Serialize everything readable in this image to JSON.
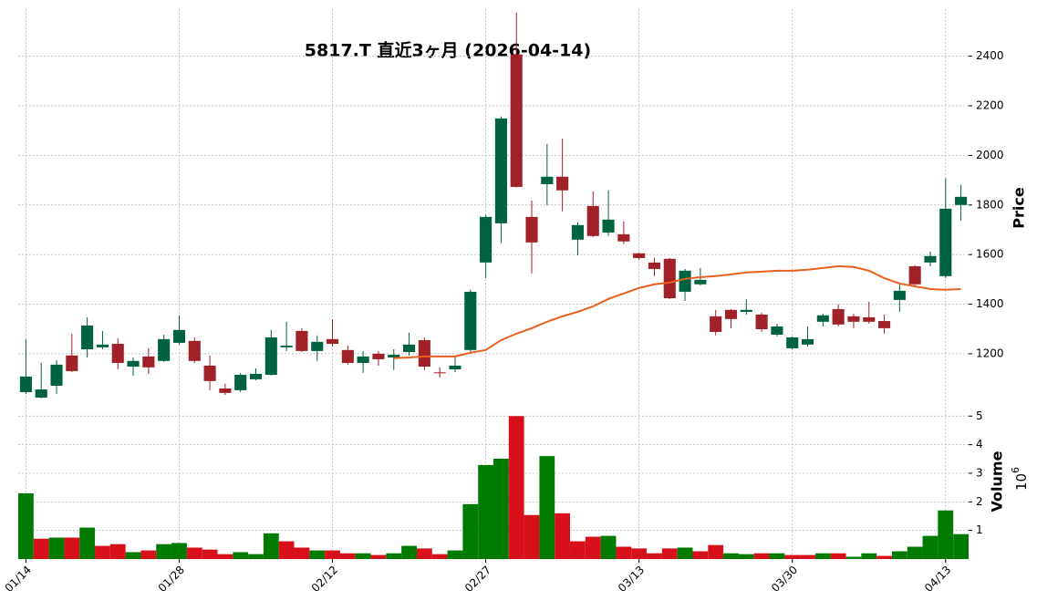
{
  "chart_data": {
    "type": "candlestick",
    "title": "5817.T  直近3ヶ月  (2026-04-14)",
    "ylabel": "Price",
    "categories": [
      "01/14",
      null,
      null,
      null,
      null,
      null,
      null,
      null,
      null,
      null,
      "01/28",
      null,
      null,
      null,
      null,
      null,
      null,
      null,
      null,
      null,
      "02/12",
      null,
      null,
      null,
      null,
      null,
      null,
      null,
      null,
      null,
      "02/27",
      null,
      null,
      null,
      null,
      null,
      null,
      null,
      null,
      null,
      "03/13",
      null,
      null,
      null,
      null,
      null,
      null,
      null,
      null,
      null,
      "03/30",
      null,
      null,
      null,
      null,
      null,
      null,
      null,
      null,
      null,
      "04/13",
      null
    ],
    "open": [
      1045,
      1023,
      1071,
      1193,
      1218,
      1226,
      1240,
      1148,
      1189,
      1171,
      1244,
      1252,
      1152,
      1060,
      1053,
      1097,
      1115,
      1226,
      1292,
      1211,
      1259,
      1215,
      1163,
      1200,
      1185,
      1207,
      1255,
      1125,
      1137,
      1215,
      1568,
      1726,
      2407,
      1752,
      1884,
      1914,
      1660,
      1796,
      1689,
      1682,
      1605,
      1568,
      1583,
      1450,
      1480,
      1351,
      1377,
      1369,
      1358,
      1277,
      1222,
      1237,
      1329,
      1380,
      1351,
      1347,
      1332,
      1417,
      1553,
      1568,
      1513,
      1800
    ],
    "high": [
      1259,
      1163,
      1174,
      1281,
      1347,
      1292,
      1263,
      1185,
      1222,
      1277,
      1355,
      1266,
      1193,
      1079,
      1123,
      1141,
      1296,
      1329,
      1303,
      1274,
      1340,
      1233,
      1211,
      1211,
      1218,
      1285,
      1266,
      1145,
      1193,
      1458,
      1759,
      2157,
      2576,
      1818,
      2046,
      2068,
      1730,
      1855,
      1859,
      1734,
      1608,
      1586,
      1586,
      1542,
      1546,
      1377,
      1380,
      1421,
      1366,
      1321,
      1270,
      1310,
      1362,
      1399,
      1362,
      1410,
      1358,
      1480,
      1557,
      1612,
      1907,
      1881
    ],
    "low": [
      1038,
      1020,
      1038,
      1126,
      1185,
      1218,
      1137,
      1112,
      1119,
      1167,
      1237,
      1163,
      1053,
      1034,
      1045,
      1093,
      1112,
      1211,
      1207,
      1171,
      1229,
      1156,
      1123,
      1152,
      1134,
      1193,
      1134,
      1104,
      1126,
      1207,
      1505,
      1645,
      1870,
      1524,
      1800,
      1774,
      1597,
      1671,
      1675,
      1642,
      1579,
      1513,
      1421,
      1413,
      1476,
      1274,
      1303,
      1358,
      1288,
      1270,
      1218,
      1229,
      1310,
      1310,
      1303,
      1321,
      1281,
      1369,
      1472,
      1553,
      1505,
      1737
    ],
    "close": [
      1108,
      1056,
      1156,
      1130,
      1314,
      1237,
      1163,
      1171,
      1145,
      1259,
      1296,
      1171,
      1090,
      1042,
      1115,
      1119,
      1266,
      1233,
      1211,
      1248,
      1240,
      1163,
      1189,
      1178,
      1196,
      1237,
      1148,
      1122,
      1152,
      1450,
      1752,
      2149,
      1873,
      1649,
      1914,
      1859,
      1719,
      1675,
      1741,
      1653,
      1586,
      1542,
      1424,
      1535,
      1498,
      1288,
      1340,
      1377,
      1299,
      1310,
      1266,
      1259,
      1355,
      1318,
      1329,
      1329,
      1303,
      1454,
      1480,
      1594,
      1785,
      1833
    ],
    "up_color": "#006340",
    "down_color": "#a02128",
    "moving_average": {
      "color": "#e8601c",
      "values": [
        null,
        null,
        null,
        null,
        null,
        null,
        null,
        null,
        null,
        null,
        null,
        null,
        null,
        null,
        null,
        null,
        null,
        null,
        null,
        null,
        null,
        null,
        null,
        null,
        1182,
        1185,
        1189,
        1189,
        1189,
        1204,
        1215,
        1255,
        1281,
        1303,
        1329,
        1351,
        1369,
        1391,
        1421,
        1443,
        1465,
        1480,
        1487,
        1502,
        1509,
        1513,
        1520,
        1528,
        1531,
        1535,
        1535,
        1539,
        1546,
        1553,
        1550,
        1535,
        1505,
        1483,
        1472,
        1461,
        1458,
        1461
      ]
    },
    "xlim": [
      -0.5,
      61.5
    ],
    "ylim": [
      990,
      2590
    ],
    "yticks": [
      1200,
      1400,
      1600,
      1800,
      2000,
      2200,
      2400
    ],
    "grid": true,
    "volume": {
      "ylabel": "Volume",
      "scale": {
        "base": "10",
        "exponent": "6"
      },
      "values": [
        2.3,
        0.71,
        0.75,
        0.75,
        1.1,
        0.46,
        0.52,
        0.24,
        0.3,
        0.52,
        0.56,
        0.4,
        0.33,
        0.17,
        0.24,
        0.17,
        0.9,
        0.62,
        0.4,
        0.3,
        0.3,
        0.2,
        0.2,
        0.14,
        0.2,
        0.46,
        0.37,
        0.17,
        0.3,
        1.92,
        3.29,
        3.51,
        5.0,
        1.54,
        3.6,
        1.6,
        0.62,
        0.78,
        0.81,
        0.43,
        0.37,
        0.2,
        0.37,
        0.4,
        0.27,
        0.49,
        0.2,
        0.17,
        0.2,
        0.2,
        0.14,
        0.14,
        0.2,
        0.2,
        0.08,
        0.2,
        0.11,
        0.27,
        0.43,
        0.81,
        1.7,
        0.87
      ],
      "up_color": "#007a00",
      "down_color": "#d7101c",
      "ylim": [
        0,
        5.2
      ],
      "yticks": [
        1,
        2,
        3,
        4,
        5
      ]
    }
  }
}
